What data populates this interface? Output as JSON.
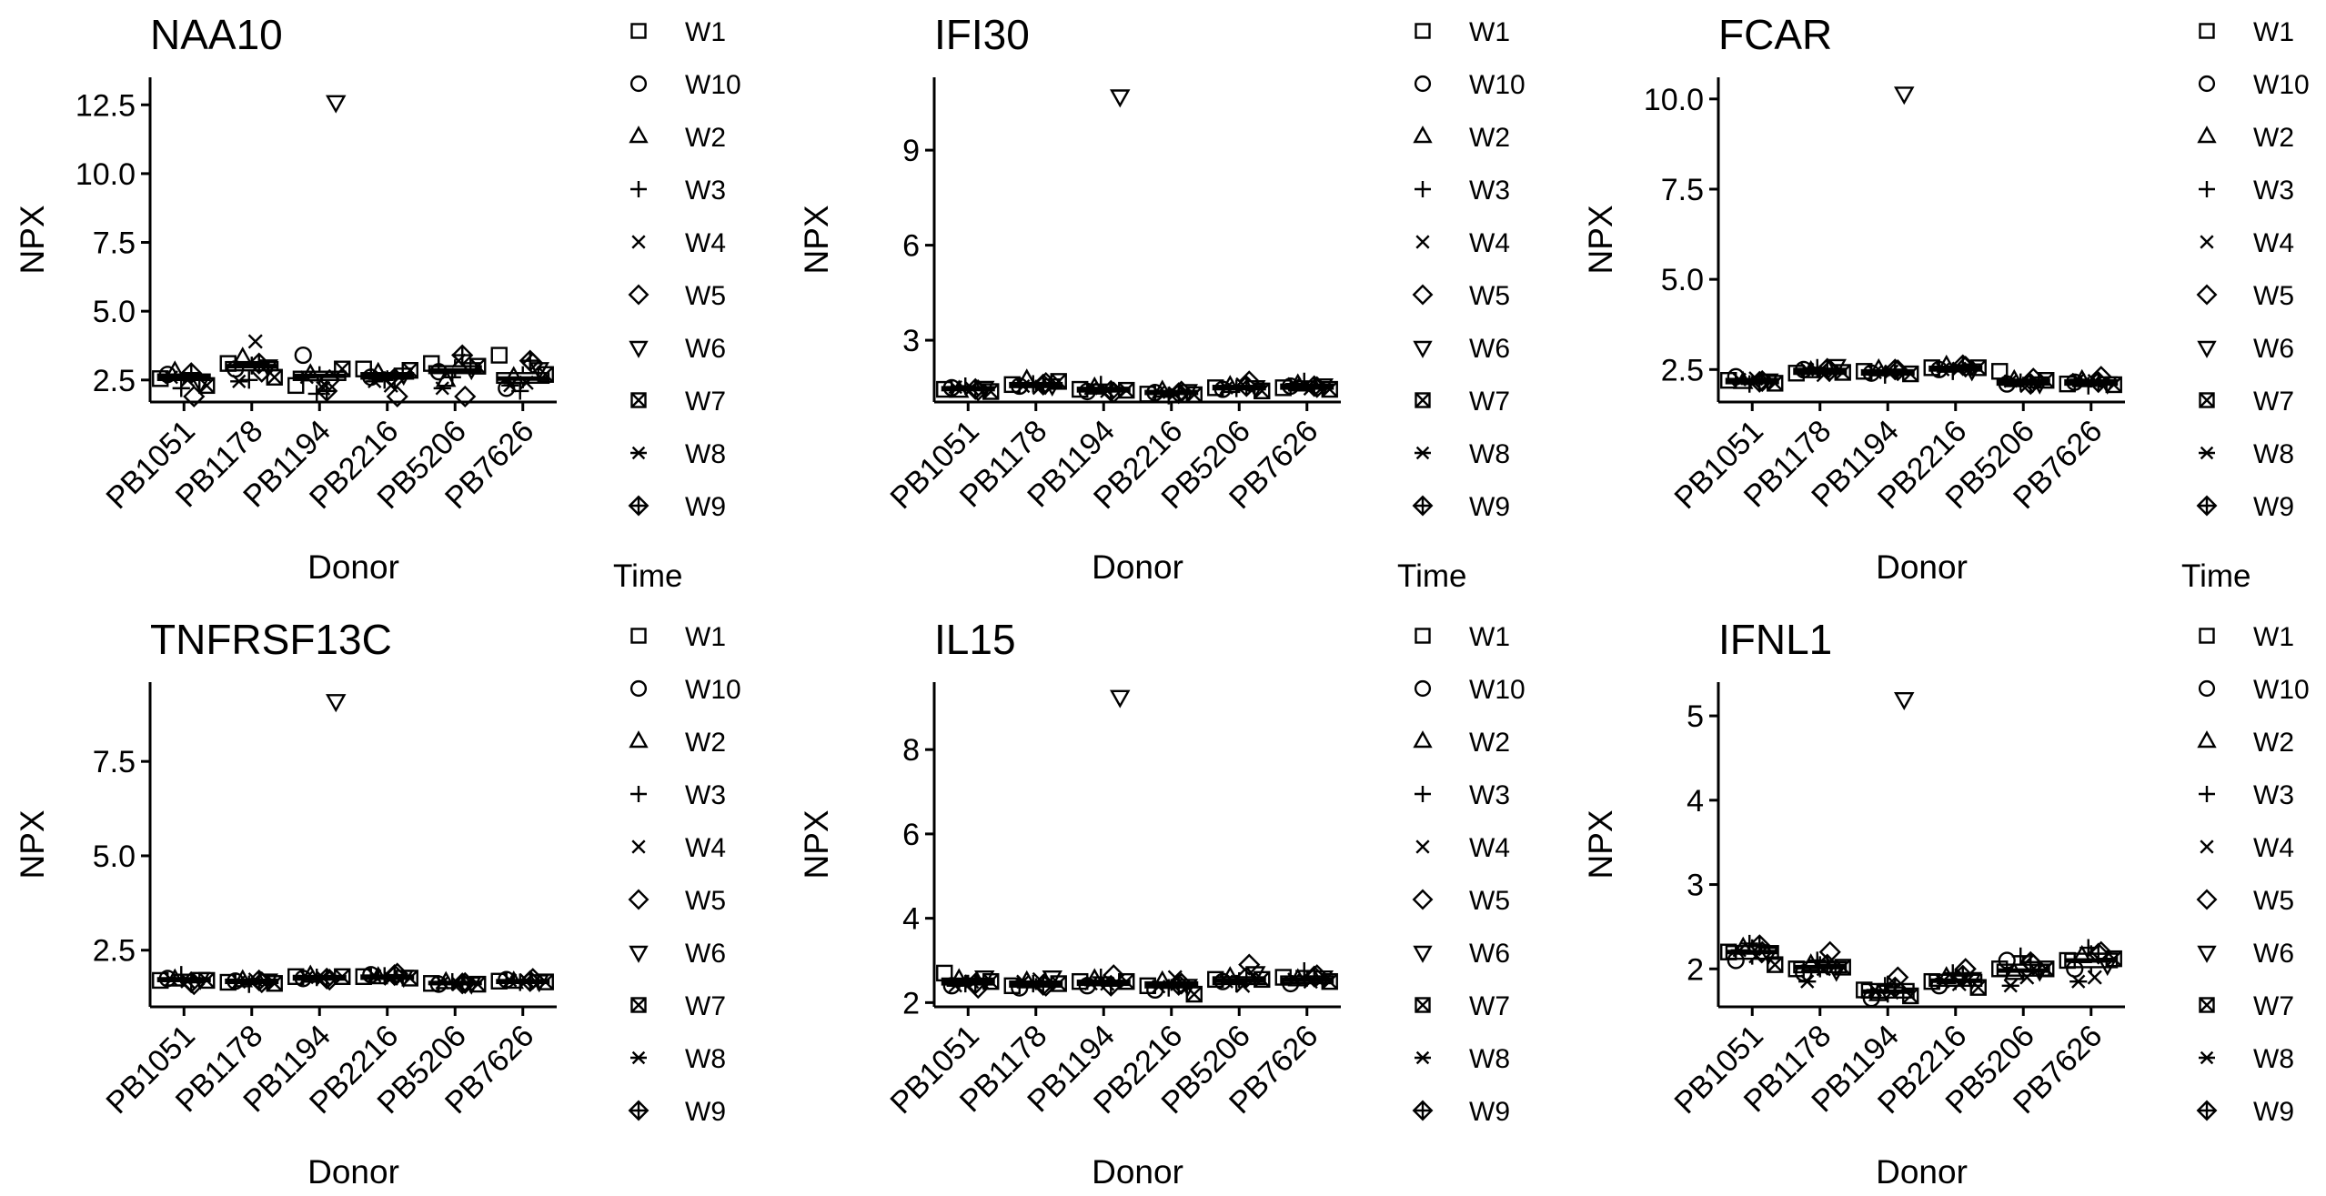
{
  "figure": {
    "legend_title": "Time",
    "time_levels": [
      "W1",
      "W10",
      "W2",
      "W3",
      "W4",
      "W5",
      "W6",
      "W7",
      "W8",
      "W9"
    ],
    "time_shapes": [
      "square",
      "circle",
      "triangle",
      "plus",
      "cross",
      "diamond",
      "triangle-down",
      "square-cross",
      "asterisk",
      "diamond-plus"
    ]
  },
  "chart_data": [
    {
      "type": "box",
      "title": "NAA10",
      "xlabel": "Donor",
      "ylabel": "NPX",
      "categories": [
        "PB1051",
        "PB1178",
        "PB1194",
        "PB2216",
        "PB5206",
        "PB7626"
      ],
      "ylim": [
        1.7,
        13.5
      ],
      "yticks": [
        2.5,
        5.0,
        7.5,
        10.0,
        12.5
      ],
      "ytick_labels": [
        "2.5",
        "5.0",
        "7.5",
        "10.0",
        "12.5"
      ],
      "legend": "right",
      "grid": false,
      "boxes": [
        [
          2.35,
          2.5,
          2.6,
          2.7,
          2.85
        ],
        [
          2.7,
          2.85,
          3.0,
          3.15,
          3.35
        ],
        [
          2.35,
          2.5,
          2.65,
          2.8,
          3.0
        ],
        [
          2.45,
          2.55,
          2.65,
          2.75,
          2.85
        ],
        [
          2.6,
          2.75,
          2.85,
          3.0,
          3.25
        ],
        [
          2.2,
          2.4,
          2.55,
          2.75,
          3.0
        ]
      ],
      "points": [
        [
          2.55,
          2.7,
          2.8,
          2.2,
          2.5,
          1.9,
          2.4,
          2.3,
          2.6,
          2.75
        ],
        [
          3.1,
          2.9,
          3.3,
          2.5,
          3.9,
          2.8,
          3.0,
          2.6,
          2.45,
          3.1
        ],
        [
          2.3,
          3.4,
          2.7,
          2.0,
          2.2,
          2.5,
          12.6,
          2.9,
          2.6,
          2.1
        ],
        [
          2.9,
          2.6,
          2.75,
          2.5,
          2.3,
          1.9,
          2.7,
          2.85,
          2.45,
          2.55
        ],
        [
          3.1,
          2.8,
          2.5,
          2.6,
          3.2,
          1.9,
          2.9,
          3.0,
          2.2,
          3.4
        ],
        [
          3.4,
          2.2,
          2.6,
          2.1,
          2.4,
          3.1,
          2.9,
          2.7,
          2.3,
          3.2
        ]
      ]
    },
    {
      "type": "box",
      "title": "IFI30",
      "xlabel": "Donor",
      "ylabel": "NPX",
      "categories": [
        "PB1051",
        "PB1178",
        "PB1194",
        "PB2216",
        "PB5206",
        "PB7626"
      ],
      "ylim": [
        1.05,
        11.3
      ],
      "yticks": [
        3,
        6,
        9
      ],
      "ytick_labels": [
        "3",
        "6",
        "9"
      ],
      "legend": "right",
      "grid": false,
      "boxes": [
        [
          1.35,
          1.42,
          1.47,
          1.52,
          1.6
        ],
        [
          1.4,
          1.52,
          1.58,
          1.65,
          1.75
        ],
        [
          1.3,
          1.38,
          1.43,
          1.5,
          1.6
        ],
        [
          1.22,
          1.3,
          1.35,
          1.4,
          1.48
        ],
        [
          1.35,
          1.45,
          1.5,
          1.56,
          1.65
        ],
        [
          1.4,
          1.47,
          1.53,
          1.6,
          1.7
        ]
      ],
      "points": [
        [
          1.45,
          1.5,
          1.4,
          1.55,
          1.48,
          1.42,
          1.5,
          1.38,
          1.52,
          1.46
        ],
        [
          1.6,
          1.55,
          1.75,
          1.62,
          1.5,
          1.65,
          1.58,
          1.7,
          1.55,
          1.6
        ],
        [
          1.45,
          1.38,
          1.5,
          1.6,
          1.4,
          1.35,
          10.7,
          1.42,
          1.48,
          1.4
        ],
        [
          1.3,
          1.35,
          1.4,
          1.25,
          1.32,
          1.38,
          1.4,
          1.28,
          1.36,
          1.33
        ],
        [
          1.5,
          1.45,
          1.55,
          1.48,
          1.6,
          1.7,
          1.52,
          1.4,
          1.5,
          1.55
        ],
        [
          1.5,
          1.55,
          1.6,
          1.7,
          1.48,
          1.52,
          1.58,
          1.45,
          1.62,
          1.55
        ]
      ]
    },
    {
      "type": "box",
      "title": "FCAR",
      "xlabel": "Donor",
      "ylabel": "NPX",
      "categories": [
        "PB1051",
        "PB1178",
        "PB1194",
        "PB2216",
        "PB5206",
        "PB7626"
      ],
      "ylim": [
        1.6,
        10.6
      ],
      "yticks": [
        2.5,
        5.0,
        7.5,
        10.0
      ],
      "ytick_labels": [
        "2.5",
        "5.0",
        "7.5",
        "10.0"
      ],
      "legend": "right",
      "grid": false,
      "boxes": [
        [
          2.05,
          2.12,
          2.18,
          2.24,
          2.32
        ],
        [
          2.3,
          2.38,
          2.45,
          2.52,
          2.62
        ],
        [
          2.3,
          2.36,
          2.42,
          2.48,
          2.56
        ],
        [
          2.4,
          2.47,
          2.52,
          2.58,
          2.66
        ],
        [
          2.0,
          2.08,
          2.15,
          2.22,
          2.3
        ],
        [
          2.0,
          2.08,
          2.14,
          2.2,
          2.3
        ]
      ],
      "points": [
        [
          2.2,
          2.3,
          2.15,
          2.1,
          2.25,
          2.18,
          2.2,
          2.12,
          2.22,
          2.16
        ],
        [
          2.4,
          2.5,
          2.45,
          2.55,
          2.35,
          2.48,
          2.6,
          2.42,
          2.5,
          2.52
        ],
        [
          2.45,
          2.4,
          2.5,
          2.35,
          2.44,
          2.48,
          10.15,
          2.38,
          2.42,
          2.5
        ],
        [
          2.55,
          2.5,
          2.6,
          2.45,
          2.52,
          2.58,
          2.48,
          2.55,
          2.5,
          2.62
        ],
        [
          2.45,
          2.1,
          2.2,
          2.15,
          2.05,
          2.25,
          2.12,
          2.2,
          2.18,
          2.1
        ],
        [
          2.1,
          2.15,
          2.2,
          2.05,
          2.18,
          2.3,
          2.12,
          2.08,
          2.22,
          2.15
        ]
      ]
    },
    {
      "type": "box",
      "title": "TNFRSF13C",
      "xlabel": "Donor",
      "ylabel": "NPX",
      "categories": [
        "PB1051",
        "PB1178",
        "PB1194",
        "PB2216",
        "PB5206",
        "PB7626"
      ],
      "ylim": [
        1.0,
        9.6
      ],
      "yticks": [
        2.5,
        5.0,
        7.5
      ],
      "ytick_labels": [
        "2.5",
        "5.0",
        "7.5"
      ],
      "legend": "right",
      "grid": false,
      "boxes": [
        [
          1.62,
          1.68,
          1.72,
          1.76,
          1.82
        ],
        [
          1.58,
          1.63,
          1.67,
          1.72,
          1.78
        ],
        [
          1.66,
          1.72,
          1.77,
          1.82,
          1.88
        ],
        [
          1.68,
          1.74,
          1.78,
          1.83,
          1.9
        ],
        [
          1.55,
          1.6,
          1.63,
          1.66,
          1.7
        ],
        [
          1.58,
          1.63,
          1.67,
          1.71,
          1.76
        ]
      ],
      "points": [
        [
          1.7,
          1.75,
          1.72,
          1.85,
          1.68,
          1.6,
          1.74,
          1.7,
          1.72,
          1.65
        ],
        [
          1.65,
          1.68,
          1.7,
          1.6,
          1.72,
          1.65,
          1.7,
          1.62,
          1.66,
          1.7
        ],
        [
          1.8,
          1.75,
          1.82,
          1.78,
          1.76,
          1.72,
          9.1,
          1.8,
          1.78,
          1.75
        ],
        [
          1.8,
          1.85,
          1.78,
          1.82,
          1.75,
          1.88,
          1.8,
          1.76,
          1.82,
          1.84
        ],
        [
          1.62,
          1.6,
          1.65,
          1.66,
          1.6,
          1.63,
          1.62,
          1.6,
          1.64,
          1.62
        ],
        [
          1.68,
          1.72,
          1.66,
          1.65,
          1.7,
          1.74,
          1.68,
          1.66,
          1.7,
          1.68
        ]
      ]
    },
    {
      "type": "box",
      "title": "IL15",
      "xlabel": "Donor",
      "ylabel": "NPX",
      "categories": [
        "PB1051",
        "PB1178",
        "PB1194",
        "PB2216",
        "PB5206",
        "PB7626"
      ],
      "ylim": [
        1.9,
        9.6
      ],
      "yticks": [
        2,
        4,
        6,
        8
      ],
      "ytick_labels": [
        "2",
        "4",
        "6",
        "8"
      ],
      "legend": "right",
      "grid": false,
      "boxes": [
        [
          2.35,
          2.43,
          2.5,
          2.57,
          2.66
        ],
        [
          2.3,
          2.38,
          2.44,
          2.5,
          2.58
        ],
        [
          2.35,
          2.42,
          2.47,
          2.52,
          2.6
        ],
        [
          2.28,
          2.36,
          2.42,
          2.48,
          2.56
        ],
        [
          2.35,
          2.44,
          2.52,
          2.6,
          2.72
        ],
        [
          2.38,
          2.46,
          2.54,
          2.62,
          2.74
        ]
      ],
      "points": [
        [
          2.7,
          2.4,
          2.55,
          2.45,
          2.5,
          2.35,
          2.6,
          2.5,
          2.4,
          2.45
        ],
        [
          2.4,
          2.35,
          2.5,
          2.45,
          2.55,
          2.4,
          2.6,
          2.45,
          2.5,
          2.42
        ],
        [
          2.5,
          2.4,
          2.55,
          2.6,
          2.45,
          2.65,
          9.25,
          2.5,
          2.45,
          2.4
        ],
        [
          2.4,
          2.3,
          2.5,
          2.35,
          2.6,
          2.45,
          2.4,
          2.2,
          2.38,
          2.42
        ],
        [
          2.55,
          2.5,
          2.6,
          2.45,
          2.4,
          2.9,
          2.7,
          2.55,
          2.5,
          2.6
        ],
        [
          2.6,
          2.45,
          2.55,
          2.75,
          2.5,
          2.65,
          2.6,
          2.5,
          2.55,
          2.62
        ]
      ]
    },
    {
      "type": "box",
      "title": "IFNL1",
      "xlabel": "Donor",
      "ylabel": "NPX",
      "categories": [
        "PB1051",
        "PB1178",
        "PB1194",
        "PB2216",
        "PB5206",
        "PB7626"
      ],
      "ylim": [
        1.55,
        5.4
      ],
      "yticks": [
        2,
        3,
        4,
        5
      ],
      "ytick_labels": [
        "2",
        "3",
        "4",
        "5"
      ],
      "legend": "right",
      "grid": false,
      "boxes": [
        [
          2.05,
          2.12,
          2.2,
          2.27,
          2.35
        ],
        [
          1.9,
          1.96,
          2.02,
          2.08,
          2.15
        ],
        [
          1.6,
          1.66,
          1.73,
          1.82,
          1.92
        ],
        [
          1.75,
          1.8,
          1.86,
          1.93,
          2.0
        ],
        [
          1.85,
          1.92,
          1.98,
          2.05,
          2.15
        ],
        [
          1.95,
          2.02,
          2.1,
          2.18,
          2.28
        ]
      ],
      "points": [
        [
          2.2,
          2.1,
          2.25,
          2.3,
          2.15,
          2.2,
          2.18,
          2.05,
          2.22,
          2.28
        ],
        [
          2.0,
          1.95,
          2.05,
          2.1,
          2.0,
          2.2,
          1.98,
          2.02,
          1.85,
          2.05
        ],
        [
          1.75,
          1.65,
          1.7,
          1.8,
          1.72,
          1.9,
          5.2,
          1.68,
          1.75,
          1.78
        ],
        [
          1.85,
          1.8,
          1.9,
          1.95,
          1.82,
          2.0,
          1.88,
          1.78,
          1.85,
          1.92
        ],
        [
          2.0,
          2.1,
          1.95,
          2.15,
          1.9,
          2.05,
          1.98,
          2.0,
          1.8,
          2.08
        ],
        [
          2.1,
          2.0,
          2.15,
          2.25,
          1.9,
          2.2,
          2.05,
          2.12,
          1.85,
          2.18
        ]
      ]
    }
  ]
}
